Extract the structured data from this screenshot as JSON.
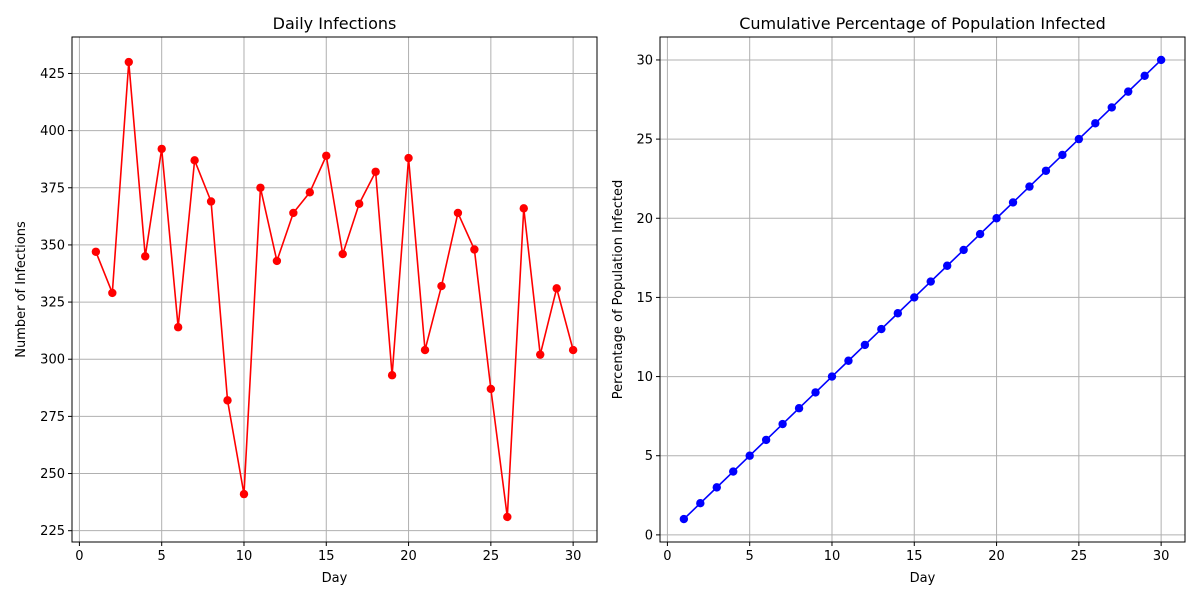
{
  "chart_data": [
    {
      "type": "line",
      "title": "Daily Infections",
      "xlabel": "Day",
      "ylabel": "Number of Infections",
      "xlim": [
        -0.45,
        31.45
      ],
      "ylim": [
        220.05,
        440.95
      ],
      "xticks": [
        0,
        5,
        10,
        15,
        20,
        25,
        30
      ],
      "yticks": [
        225,
        250,
        275,
        300,
        325,
        350,
        375,
        400,
        425
      ],
      "grid": true,
      "color": "#ff0000",
      "marker": "circle",
      "x": [
        1,
        2,
        3,
        4,
        5,
        6,
        7,
        8,
        9,
        10,
        11,
        12,
        13,
        14,
        15,
        16,
        17,
        18,
        19,
        20,
        21,
        22,
        23,
        24,
        25,
        26,
        27,
        28,
        29,
        30
      ],
      "values": [
        347,
        329,
        430,
        345,
        392,
        314,
        387,
        369,
        282,
        241,
        375,
        343,
        364,
        373,
        389,
        346,
        368,
        382,
        293,
        388,
        304,
        332,
        364,
        348,
        287,
        231,
        366,
        302,
        331,
        304
      ]
    },
    {
      "type": "line",
      "title": "Cumulative Percentage of Population Infected",
      "xlabel": "Day",
      "ylabel": "Percentage of Population Infected",
      "xlim": [
        -0.45,
        31.45
      ],
      "ylim": [
        -0.45,
        31.45
      ],
      "xticks": [
        0,
        5,
        10,
        15,
        20,
        25,
        30
      ],
      "yticks": [
        0,
        5,
        10,
        15,
        20,
        25,
        30
      ],
      "grid": true,
      "color": "#0000ff",
      "marker": "circle",
      "x": [
        1,
        2,
        3,
        4,
        5,
        6,
        7,
        8,
        9,
        10,
        11,
        12,
        13,
        14,
        15,
        16,
        17,
        18,
        19,
        20,
        21,
        22,
        23,
        24,
        25,
        26,
        27,
        28,
        29,
        30
      ],
      "values": [
        1,
        2,
        3,
        4,
        5,
        6,
        7,
        8,
        9,
        10,
        11,
        12,
        13,
        14,
        15,
        16,
        17,
        18,
        19,
        20,
        21,
        22,
        23,
        24,
        25,
        26,
        27,
        28,
        29,
        30
      ]
    }
  ]
}
